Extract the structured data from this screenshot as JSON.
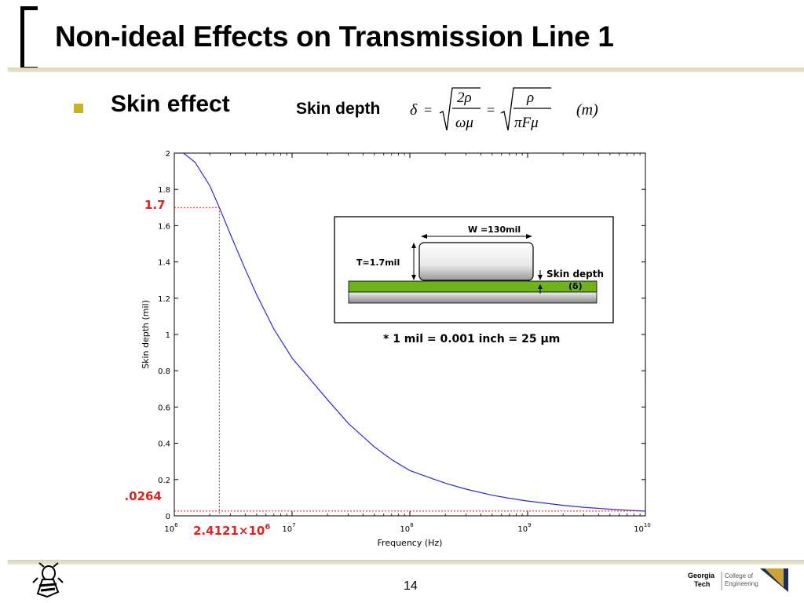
{
  "slide": {
    "title": "Non-ideal Effects on Transmission Line 1",
    "bullet": "Skin effect",
    "skin_depth_label": "Skin depth",
    "page_number": "14",
    "accent_color": "#c9b227",
    "logo": {
      "line1": "Georgia",
      "line2": "Tech",
      "line3": "College of",
      "line4": "Engineering"
    }
  },
  "formula": {
    "delta": "δ",
    "equals": "=",
    "num1": "2ρ",
    "den1": "ωμ",
    "num2": "ρ",
    "den2": "πFμ",
    "unit": "(m)"
  },
  "chart_data": {
    "type": "line",
    "xlabel": "Frequency (Hz)",
    "ylabel": "Skin depth (mil)",
    "x_scale": "log",
    "xlim": [
      1000000,
      10000000000
    ],
    "ylim": [
      0,
      2
    ],
    "x_ticks": [
      {
        "value": 1000000,
        "base": "10",
        "exp": "6"
      },
      {
        "value": 10000000,
        "base": "10",
        "exp": "7"
      },
      {
        "value": 100000000,
        "base": "10",
        "exp": "8"
      },
      {
        "value": 1000000000,
        "base": "10",
        "exp": "9"
      },
      {
        "value": 10000000000,
        "base": "10",
        "exp": "10"
      }
    ],
    "y_ticks": [
      0,
      0.2,
      0.4,
      0.6,
      0.8,
      1,
      1.2,
      1.4,
      1.6,
      1.8,
      2
    ],
    "y_tick_labels": [
      "0",
      "0.2",
      "0.4",
      "0.6",
      "0.8",
      "1",
      "1.2",
      "1.4",
      "1.6",
      "1.8",
      "2"
    ],
    "series": [
      {
        "color": "#2b2bd6",
        "x": [
          1000000,
          1500000,
          2000000,
          2412100,
          3000000,
          4000000,
          5000000,
          7000000,
          10000000,
          20000000,
          30000000,
          50000000,
          70000000,
          100000000,
          200000000,
          300000000,
          500000000,
          700000000,
          1000000000,
          2000000000,
          3000000000,
          5000000000,
          7000000000,
          10000000000
        ],
        "y": [
          2.04,
          1.95,
          1.82,
          1.7,
          1.55,
          1.36,
          1.22,
          1.03,
          0.87,
          0.64,
          0.51,
          0.38,
          0.31,
          0.25,
          0.18,
          0.147,
          0.114,
          0.097,
          0.082,
          0.058,
          0.047,
          0.037,
          0.031,
          0.026
        ]
      }
    ],
    "annotations": {
      "y_high": "1.7",
      "y_low": "0.0264",
      "x_mark": "2.4121×10",
      "x_mark_exp": "6",
      "color": "#dd2222"
    },
    "inset": {
      "width_label": "W =130mil",
      "thickness_label": "T=1.7mil",
      "skin_label": "Skin depth",
      "delta_label": "(δ)",
      "note": "*   1 mil = 0.001 inch = 25 μm",
      "trace_color": "#6fb219"
    }
  }
}
